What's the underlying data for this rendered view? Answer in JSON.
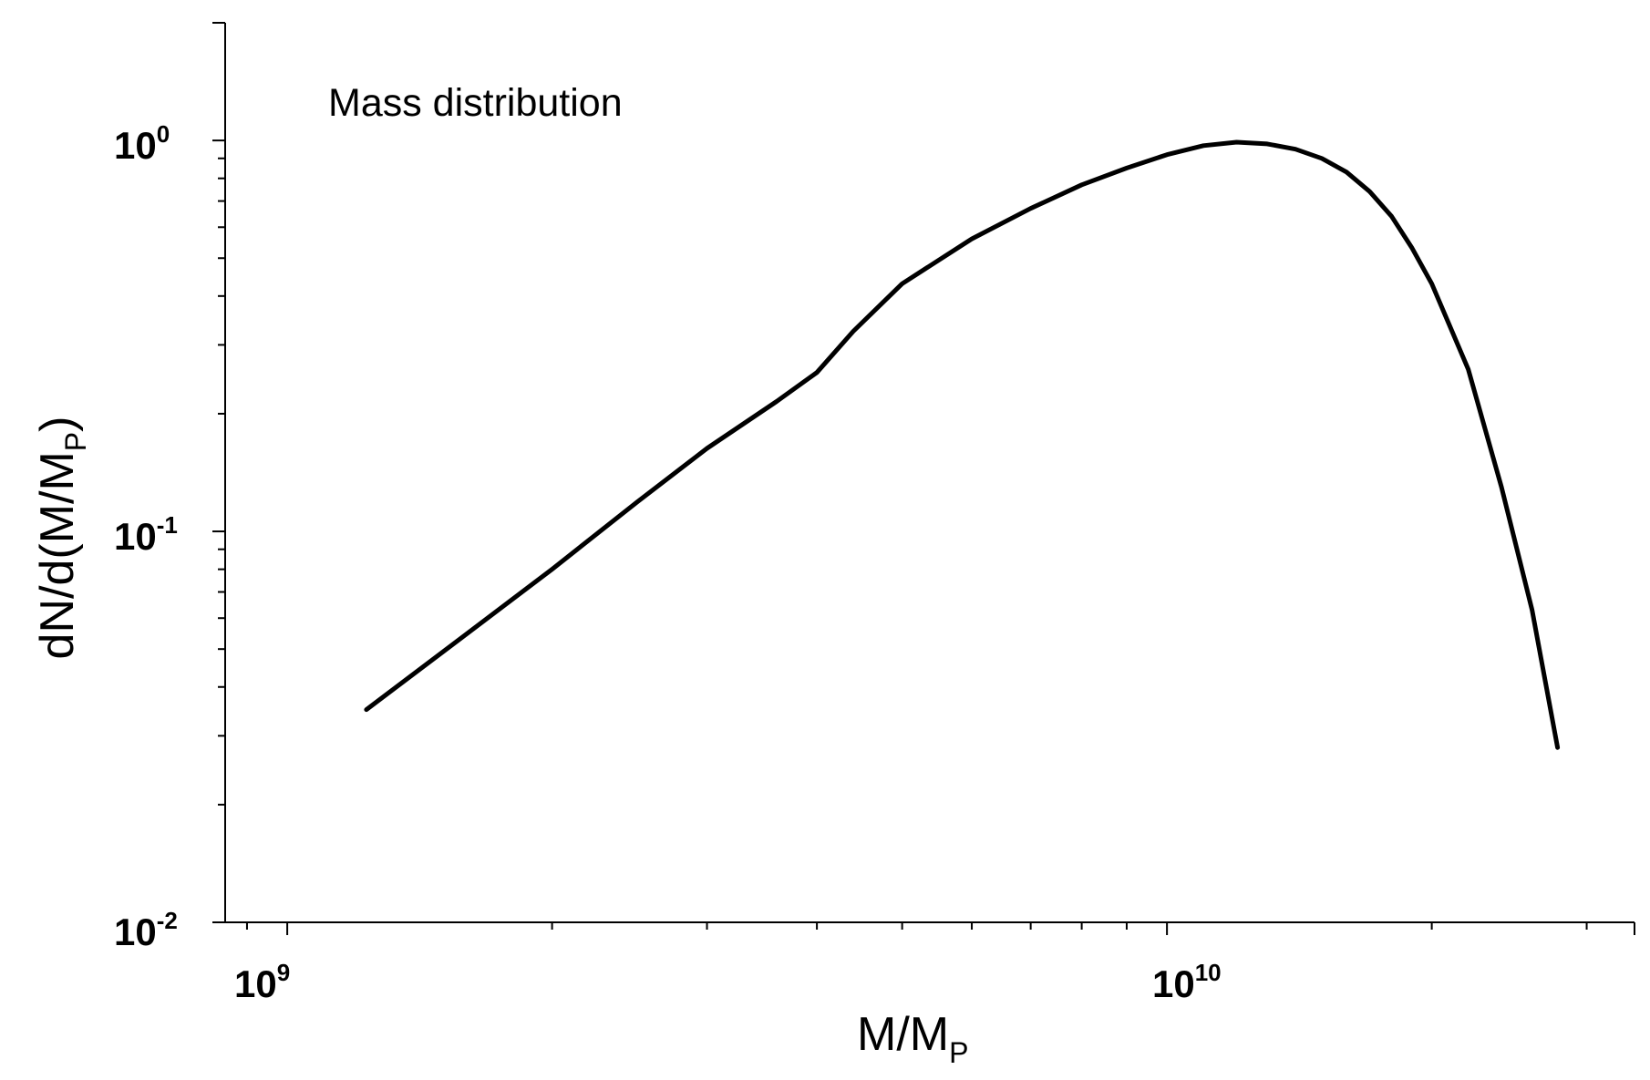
{
  "chart_data": {
    "type": "line",
    "title": "",
    "annotation": "Mass distribution",
    "xlabel": {
      "main": "M/M",
      "sub": "P"
    },
    "ylabel": {
      "main": "dN/d(M/M",
      "sub": "P",
      "close": ")"
    },
    "xscale": "log",
    "yscale": "log",
    "xlim": [
      850000000,
      34000000000
    ],
    "ylim": [
      0.01,
      2.0
    ],
    "x_tick_labels": [
      {
        "value": 1000000000,
        "base": "10",
        "exp": "9"
      },
      {
        "value": 10000000000,
        "base": "10",
        "exp": "10"
      }
    ],
    "y_tick_labels": [
      {
        "value": 0.01,
        "base": "10",
        "exp": "-2"
      },
      {
        "value": 0.1,
        "base": "10",
        "exp": "-1"
      },
      {
        "value": 1,
        "base": "10",
        "exp": "0"
      }
    ],
    "grid": false,
    "series": [
      {
        "name": "Mass distribution",
        "color": "#000000",
        "x": [
          1230000000,
          1500000000,
          2000000000,
          2500000000,
          3000000000,
          3600000000,
          4000000000,
          4400000000,
          5000000000,
          6000000000,
          7000000000,
          8000000000,
          9000000000,
          10000000000,
          11000000000,
          12000000000,
          13000000000,
          14000000000,
          15000000000,
          16000000000,
          17000000000,
          18000000000,
          19000000000,
          20000000000,
          22000000000,
          24000000000,
          26000000000,
          27800000000
        ],
        "y": [
          0.035,
          0.049,
          0.08,
          0.119,
          0.163,
          0.215,
          0.255,
          0.325,
          0.43,
          0.56,
          0.67,
          0.77,
          0.85,
          0.92,
          0.97,
          0.99,
          0.98,
          0.95,
          0.9,
          0.83,
          0.74,
          0.64,
          0.53,
          0.43,
          0.26,
          0.13,
          0.063,
          0.028
        ]
      }
    ]
  }
}
